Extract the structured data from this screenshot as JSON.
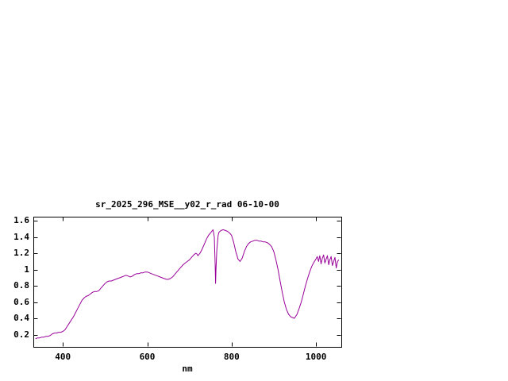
{
  "page": {
    "background_color": "#ffffff"
  },
  "chart_data": {
    "type": "line",
    "title": "sr_2025_296_MSE__y02_r_rad 06-10-00",
    "xlabel": "nm",
    "ylabel": "",
    "xlim": [
      330,
      1060
    ],
    "ylim": [
      0.05,
      1.65
    ],
    "xticks": [
      400,
      600,
      800,
      1000
    ],
    "xtick_labels": [
      "400",
      "600",
      "800",
      "1000"
    ],
    "yticks": [
      0.2,
      0.4,
      0.6,
      0.8,
      1,
      1.2,
      1.4,
      1.6
    ],
    "ytick_labels": [
      "0.2",
      "0.4",
      "0.6",
      "0.8",
      "1",
      "1.2",
      "1.4",
      "1.6"
    ],
    "grid": false,
    "legend": "none",
    "line_color": "#990099",
    "axis_color": "#000000",
    "series": [
      {
        "name": "sr_2025_296_MSE__y02_r_rad 06-10-00",
        "points": [
          [
            335,
            0.15
          ],
          [
            340,
            0.16
          ],
          [
            345,
            0.16
          ],
          [
            350,
            0.17
          ],
          [
            355,
            0.17
          ],
          [
            360,
            0.18
          ],
          [
            365,
            0.18
          ],
          [
            370,
            0.19
          ],
          [
            375,
            0.21
          ],
          [
            380,
            0.22
          ],
          [
            385,
            0.22
          ],
          [
            390,
            0.23
          ],
          [
            395,
            0.23
          ],
          [
            400,
            0.24
          ],
          [
            405,
            0.26
          ],
          [
            410,
            0.3
          ],
          [
            415,
            0.34
          ],
          [
            420,
            0.38
          ],
          [
            425,
            0.42
          ],
          [
            430,
            0.47
          ],
          [
            435,
            0.52
          ],
          [
            440,
            0.57
          ],
          [
            445,
            0.62
          ],
          [
            450,
            0.65
          ],
          [
            455,
            0.67
          ],
          [
            460,
            0.68
          ],
          [
            465,
            0.7
          ],
          [
            470,
            0.72
          ],
          [
            475,
            0.73
          ],
          [
            480,
            0.73
          ],
          [
            485,
            0.74
          ],
          [
            490,
            0.77
          ],
          [
            495,
            0.8
          ],
          [
            500,
            0.83
          ],
          [
            505,
            0.85
          ],
          [
            510,
            0.86
          ],
          [
            515,
            0.86
          ],
          [
            520,
            0.87
          ],
          [
            525,
            0.88
          ],
          [
            530,
            0.89
          ],
          [
            535,
            0.9
          ],
          [
            540,
            0.91
          ],
          [
            545,
            0.92
          ],
          [
            550,
            0.93
          ],
          [
            555,
            0.92
          ],
          [
            560,
            0.91
          ],
          [
            565,
            0.92
          ],
          [
            570,
            0.94
          ],
          [
            575,
            0.95
          ],
          [
            580,
            0.95
          ],
          [
            585,
            0.96
          ],
          [
            590,
            0.96
          ],
          [
            595,
            0.97
          ],
          [
            600,
            0.97
          ],
          [
            605,
            0.96
          ],
          [
            610,
            0.95
          ],
          [
            615,
            0.94
          ],
          [
            620,
            0.93
          ],
          [
            625,
            0.92
          ],
          [
            630,
            0.91
          ],
          [
            635,
            0.9
          ],
          [
            640,
            0.89
          ],
          [
            645,
            0.88
          ],
          [
            650,
            0.88
          ],
          [
            655,
            0.89
          ],
          [
            660,
            0.91
          ],
          [
            665,
            0.94
          ],
          [
            670,
            0.97
          ],
          [
            675,
            1.0
          ],
          [
            680,
            1.03
          ],
          [
            685,
            1.06
          ],
          [
            690,
            1.08
          ],
          [
            695,
            1.1
          ],
          [
            700,
            1.12
          ],
          [
            705,
            1.15
          ],
          [
            710,
            1.18
          ],
          [
            715,
            1.2
          ],
          [
            718,
            1.19
          ],
          [
            720,
            1.17
          ],
          [
            725,
            1.2
          ],
          [
            730,
            1.25
          ],
          [
            735,
            1.31
          ],
          [
            740,
            1.37
          ],
          [
            745,
            1.42
          ],
          [
            750,
            1.45
          ],
          [
            753,
            1.47
          ],
          [
            756,
            1.49
          ],
          [
            759,
            1.4
          ],
          [
            761,
            1.05
          ],
          [
            762,
            0.83
          ],
          [
            763,
            1.0
          ],
          [
            765,
            1.25
          ],
          [
            768,
            1.42
          ],
          [
            770,
            1.46
          ],
          [
            775,
            1.48
          ],
          [
            780,
            1.49
          ],
          [
            785,
            1.48
          ],
          [
            790,
            1.47
          ],
          [
            795,
            1.45
          ],
          [
            800,
            1.42
          ],
          [
            805,
            1.33
          ],
          [
            810,
            1.22
          ],
          [
            815,
            1.13
          ],
          [
            820,
            1.1
          ],
          [
            825,
            1.14
          ],
          [
            830,
            1.22
          ],
          [
            835,
            1.28
          ],
          [
            840,
            1.32
          ],
          [
            845,
            1.34
          ],
          [
            850,
            1.35
          ],
          [
            855,
            1.36
          ],
          [
            860,
            1.36
          ],
          [
            865,
            1.35
          ],
          [
            870,
            1.35
          ],
          [
            875,
            1.34
          ],
          [
            880,
            1.34
          ],
          [
            885,
            1.33
          ],
          [
            890,
            1.31
          ],
          [
            895,
            1.28
          ],
          [
            900,
            1.22
          ],
          [
            905,
            1.12
          ],
          [
            910,
            1.0
          ],
          [
            915,
            0.86
          ],
          [
            920,
            0.72
          ],
          [
            925,
            0.6
          ],
          [
            930,
            0.51
          ],
          [
            935,
            0.45
          ],
          [
            940,
            0.42
          ],
          [
            945,
            0.41
          ],
          [
            948,
            0.4
          ],
          [
            950,
            0.41
          ],
          [
            955,
            0.45
          ],
          [
            960,
            0.52
          ],
          [
            965,
            0.6
          ],
          [
            970,
            0.7
          ],
          [
            975,
            0.8
          ],
          [
            980,
            0.89
          ],
          [
            985,
            0.97
          ],
          [
            990,
            1.04
          ],
          [
            995,
            1.09
          ],
          [
            1000,
            1.13
          ],
          [
            1003,
            1.16
          ],
          [
            1006,
            1.1
          ],
          [
            1009,
            1.17
          ],
          [
            1012,
            1.07
          ],
          [
            1015,
            1.14
          ],
          [
            1018,
            1.18
          ],
          [
            1021,
            1.08
          ],
          [
            1024,
            1.13
          ],
          [
            1027,
            1.17
          ],
          [
            1030,
            1.06
          ],
          [
            1033,
            1.12
          ],
          [
            1036,
            1.16
          ],
          [
            1039,
            1.05
          ],
          [
            1042,
            1.1
          ],
          [
            1045,
            1.15
          ],
          [
            1048,
            1.02
          ],
          [
            1051,
            1.1
          ],
          [
            1054,
            1.12
          ]
        ]
      }
    ]
  }
}
